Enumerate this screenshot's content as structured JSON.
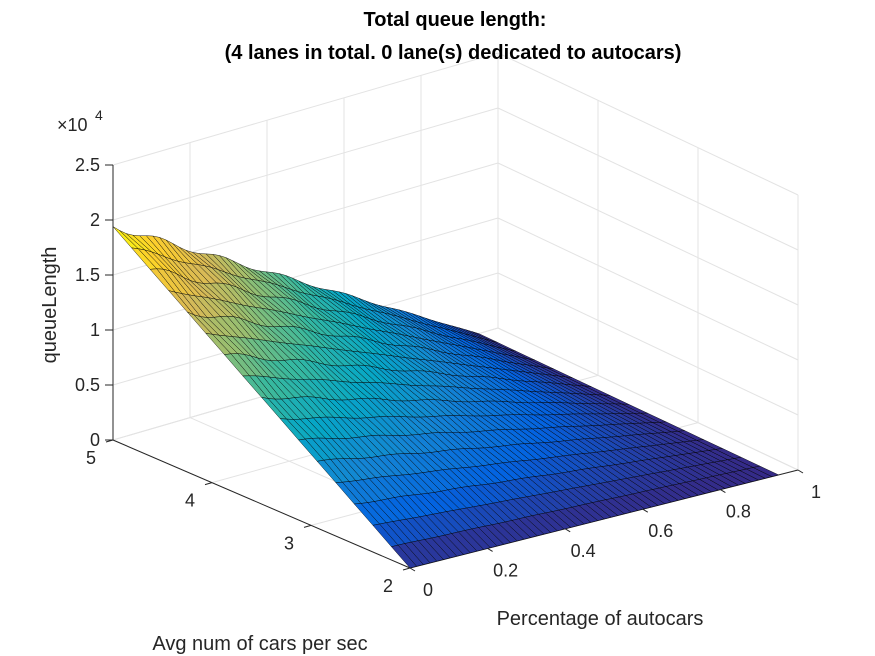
{
  "chart_data": {
    "type": "surface",
    "title": "Total queue length:",
    "subtitle": "(4 lanes in total. 0 lane(s) dedicated to autocars)",
    "xlabel": "Percentage of autocars",
    "ylabel": "Avg num of cars per sec",
    "zlabel": "queueLength",
    "z_exponent_label": "×10",
    "z_exponent_power": "4",
    "xlim": [
      0,
      1
    ],
    "ylim": [
      2,
      5
    ],
    "zlim": [
      0,
      25000
    ],
    "x_ticks": [
      "0",
      "0.2",
      "0.4",
      "0.6",
      "0.8",
      "1"
    ],
    "y_ticks": [
      "2",
      "3",
      "4",
      "5"
    ],
    "z_ticks": [
      "0",
      "0.5",
      "1",
      "1.5",
      "2",
      "2.5"
    ],
    "grid": true,
    "colormap": "parula",
    "colormap_stops": [
      "#352a87",
      "#0363e1",
      "#1485d4",
      "#06a7c6",
      "#38b99e",
      "#92bf73",
      "#d9ba56",
      "#fcce2e",
      "#f9fb0e"
    ],
    "surface": {
      "x_range": [
        0,
        0.95
      ],
      "y_range": [
        2,
        5
      ],
      "z_corners": {
        "x0_y2": 0,
        "x0_y5": 19400,
        "x095_y2": 0,
        "x095_y5": 0
      },
      "x_steps": 55,
      "y_steps": 16
    }
  }
}
